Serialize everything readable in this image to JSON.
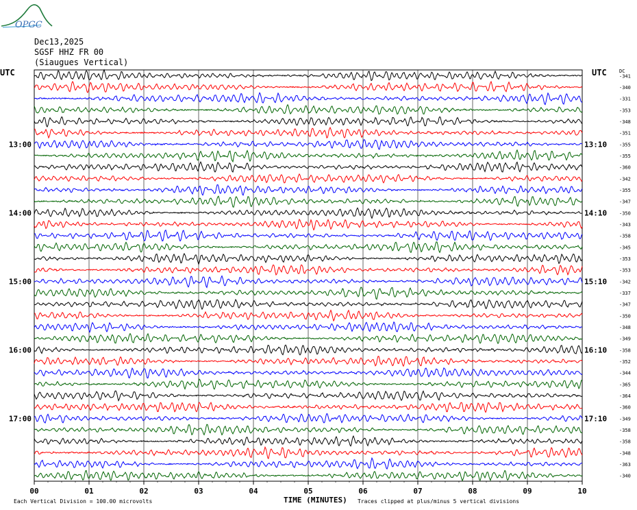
{
  "logo_text": "OPGC",
  "header": {
    "date": "Dec13,2025",
    "station": "SGSF HHZ FR 00",
    "location": "(Siaugues Vertical)"
  },
  "left_axis_title": "UTC",
  "right_axis_title": "UTC",
  "dc_label": "DC",
  "footer": {
    "xlabel": "TIME (MINUTES)",
    "scale_note": "Each Vertical Division =  100.00 microvolts",
    "clip_note": "Traces clipped at plus/minus 5 vertical divisions"
  },
  "colors": {
    "trace_cycle": [
      "#000000",
      "#ff0000",
      "#0000ff",
      "#006400"
    ],
    "grid": "#000000",
    "logo": "#1d7a3a"
  },
  "chart_data": {
    "type": "line",
    "description_of_axes": "helicorder",
    "x_ticks": [
      "00",
      "01",
      "02",
      "03",
      "04",
      "05",
      "06",
      "07",
      "08",
      "09",
      "10"
    ],
    "xlim": [
      0,
      10
    ],
    "minutes_per_trace": 10,
    "traces_per_hour": 6,
    "left_hour_labels": [
      "13:00",
      "14:00",
      "15:00",
      "16:00",
      "17:00"
    ],
    "right_hour_labels": [
      "13:10",
      "14:10",
      "15:10",
      "16:10",
      "17:10"
    ],
    "dc_offsets": [
      -341,
      -340,
      -331,
      -353,
      -348,
      -351,
      -355,
      -355,
      -360,
      -342,
      -355,
      -347,
      -350,
      -343,
      -358,
      -345,
      -353,
      -353,
      -342,
      -337,
      -347,
      -350,
      -348,
      -349,
      -358,
      -352,
      -344,
      -365,
      -364,
      -360,
      -349,
      -358,
      -358,
      -348,
      -363,
      -340
    ]
  }
}
